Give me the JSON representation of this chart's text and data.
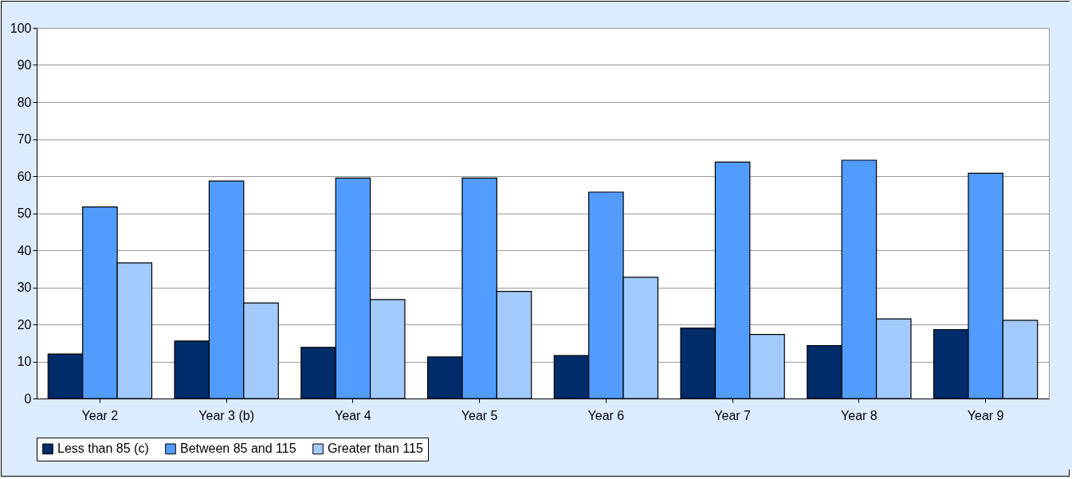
{
  "chart_data": {
    "type": "bar",
    "categories": [
      "Year 2",
      "Year 3 (b)",
      "Year 4",
      "Year 5",
      "Year 6",
      "Year 7",
      "Year 8",
      "Year 9"
    ],
    "series": [
      {
        "name": "Less than 85 (c)",
        "color": "#002c6a",
        "values": [
          12.0,
          15.5,
          13.8,
          11.2,
          11.6,
          19.0,
          14.3,
          18.6
        ]
      },
      {
        "name": "Between 85 and 115",
        "color": "#529cff",
        "values": [
          51.7,
          58.7,
          59.5,
          59.5,
          55.7,
          63.8,
          64.3,
          60.8
        ]
      },
      {
        "name": "Greater than 115",
        "color": "#a3cafd",
        "values": [
          36.6,
          25.8,
          26.7,
          28.9,
          32.7,
          17.3,
          21.5,
          21.1
        ]
      }
    ],
    "ylim": [
      0,
      100
    ],
    "yticks": [
      0,
      10,
      20,
      30,
      40,
      50,
      60,
      70,
      80,
      90,
      100
    ],
    "grid": "y",
    "legend": "bottom"
  }
}
